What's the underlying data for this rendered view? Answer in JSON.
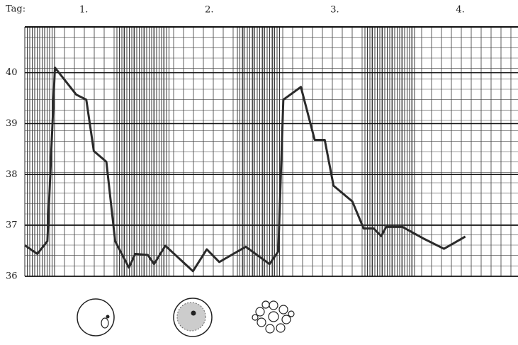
{
  "chart_data": {
    "type": "line",
    "xlabel": "Tag:",
    "x": [
      0.53,
      0.63,
      0.71,
      0.77,
      0.94,
      1.02,
      1.08,
      1.18,
      1.25,
      1.36,
      1.41,
      1.51,
      1.56,
      1.65,
      1.87,
      1.98,
      2.08,
      2.29,
      2.48,
      2.55,
      2.59,
      2.73,
      2.84,
      2.92,
      2.99,
      3.14,
      3.23,
      3.31,
      3.37,
      3.41,
      3.54,
      3.7,
      3.87,
      4.04
    ],
    "series": [
      {
        "color": "#2a2a2a",
        "values": [
          36.61,
          36.44,
          36.69,
          40.1,
          39.57,
          39.47,
          38.46,
          38.25,
          36.69,
          36.17,
          36.44,
          36.42,
          36.24,
          36.6,
          36.1,
          36.53,
          36.28,
          36.58,
          36.24,
          36.49,
          39.47,
          39.72,
          38.68,
          38.68,
          37.78,
          37.47,
          36.94,
          36.94,
          36.79,
          36.97,
          36.97,
          36.75,
          36.54,
          36.78
        ]
      }
    ],
    "xlim": [
      0.53,
      4.46
    ],
    "xticks": [
      {
        "value": 1,
        "label": "1."
      },
      {
        "value": 2,
        "label": "2."
      },
      {
        "value": 3,
        "label": "3."
      },
      {
        "value": 4,
        "label": "4."
      }
    ],
    "ylim": [
      36,
      40.9
    ],
    "yticks": [
      36,
      37,
      38,
      39,
      40
    ],
    "grid": true
  }
}
